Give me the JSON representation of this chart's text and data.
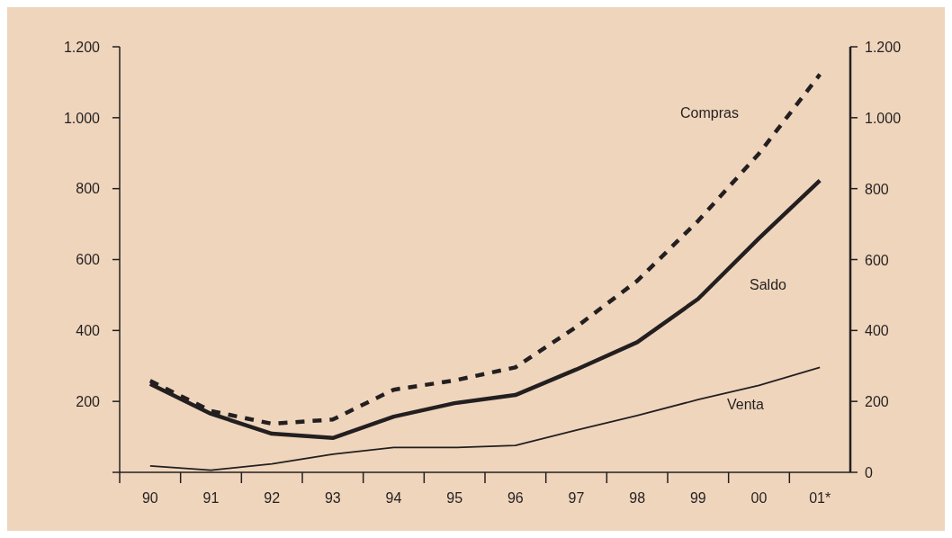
{
  "chart_data": {
    "type": "line",
    "categories": [
      "90",
      "91",
      "92",
      "93",
      "94",
      "95",
      "96",
      "97",
      "98",
      "99",
      "00",
      "01*"
    ],
    "series": [
      {
        "name": "Compras",
        "color": "#231f20",
        "line_style": "dashed",
        "values": [
          258,
          173,
          137,
          149,
          233,
          259,
          296,
          410,
          540,
          709,
          899,
          1122
        ]
      },
      {
        "name": "Saldo",
        "color": "#231f20",
        "values": [
          249,
          165,
          109,
          97,
          157,
          195,
          218,
          290,
          367,
          489,
          660,
          823
        ]
      },
      {
        "name": "Venta",
        "color": "#231f20",
        "values": [
          18,
          6,
          24,
          51,
          70,
          70,
          76,
          119,
          160,
          205,
          245,
          296
        ]
      }
    ],
    "ylim": [
      0,
      1200
    ],
    "yticks": [
      {
        "value": 0,
        "label": null
      },
      200,
      400,
      600,
      800,
      {
        "value": 1000,
        "label": "1.000"
      },
      {
        "value": 1200,
        "label": "1.200"
      }
    ],
    "y2lim": [
      0,
      1200
    ],
    "y2ticks": [
      0,
      200,
      400,
      600,
      800,
      {
        "value": 1000,
        "label": "1.000"
      },
      {
        "value": 1200,
        "label": "1.200"
      }
    ],
    "grid": false,
    "legend": false,
    "marker": "none",
    "line_style": "solid"
  }
}
